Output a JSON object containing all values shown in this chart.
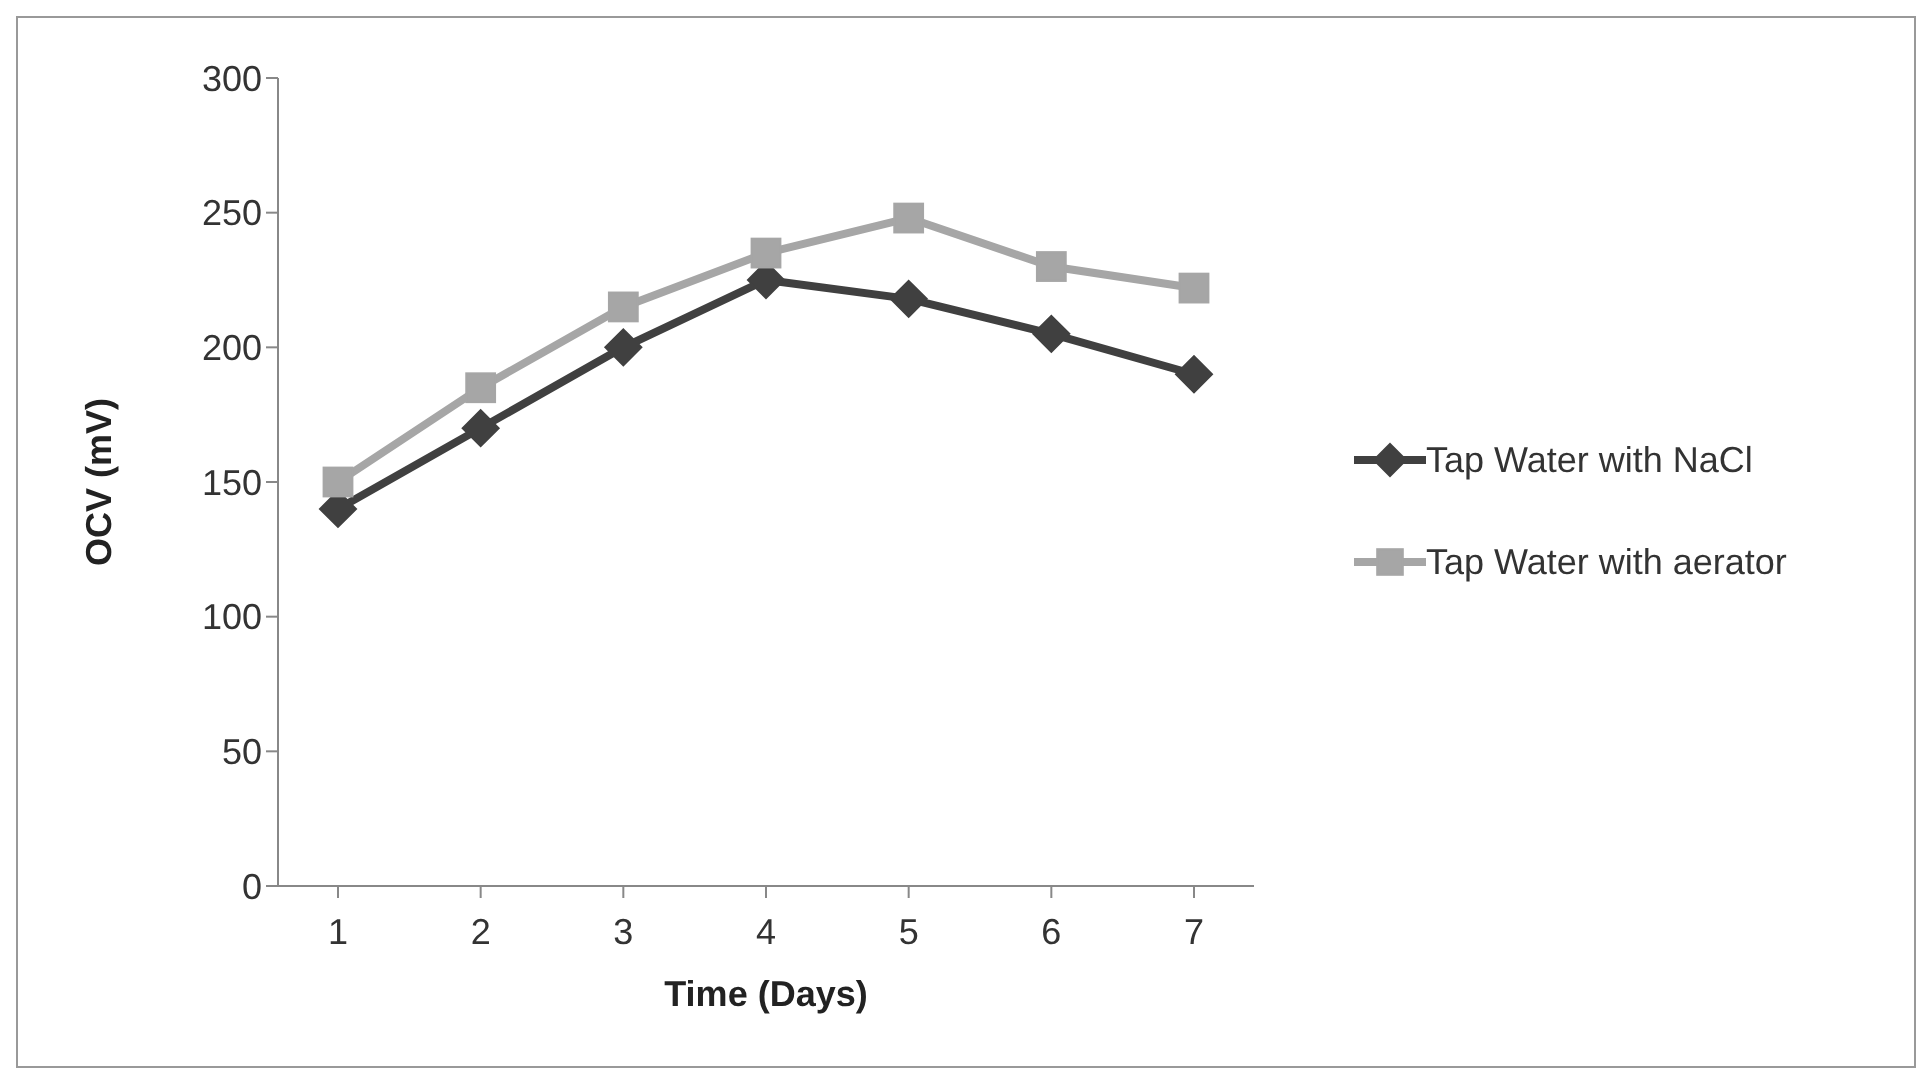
{
  "chart_data": {
    "type": "line",
    "xlabel": "Time (Days)",
    "ylabel": "OCV (mV)",
    "categories": [
      "1",
      "2",
      "3",
      "4",
      "5",
      "6",
      "7"
    ],
    "series": [
      {
        "name": "Tap Water with NaCl",
        "color": "#404040",
        "marker": "diamond",
        "values": [
          140,
          170,
          200,
          225,
          218,
          205,
          190
        ]
      },
      {
        "name": "Tap Water with aerator",
        "color": "#a6a6a6",
        "marker": "square",
        "values": [
          150,
          185,
          215,
          235,
          248,
          230,
          222
        ]
      }
    ],
    "ylim": [
      0,
      300
    ],
    "yticks": [
      0,
      50,
      100,
      150,
      200,
      250,
      300
    ],
    "grid": false,
    "legend": "right",
    "line_style": "solid"
  }
}
